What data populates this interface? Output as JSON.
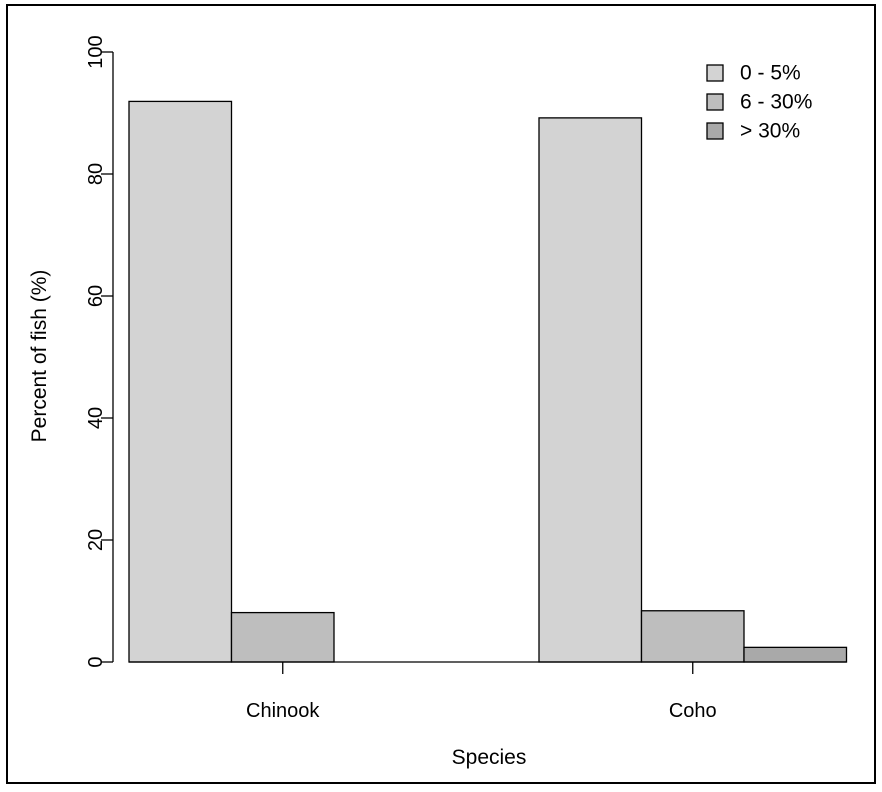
{
  "chart_data": {
    "type": "bar",
    "categories": [
      "Chinook",
      "Coho"
    ],
    "series": [
      {
        "name": "0 - 5%",
        "values": [
          91.9,
          89.2
        ],
        "color": "#d3d3d3"
      },
      {
        "name": "6 - 30%",
        "values": [
          8.1,
          8.4
        ],
        "color": "#bebebe"
      },
      {
        "name": "> 30%",
        "values": [
          0,
          2.4
        ],
        "color": "#a9a9a9"
      }
    ],
    "title": "",
    "xlabel": "Species",
    "ylabel": "Percent of fish (%)",
    "ylim": [
      0,
      100
    ],
    "yticks": [
      0,
      20,
      40,
      60,
      80,
      100
    ],
    "grid": false,
    "legend_position": "top-right",
    "colors": {
      "background": "#ffffff",
      "axis": "#000000",
      "border": "#000000"
    }
  }
}
